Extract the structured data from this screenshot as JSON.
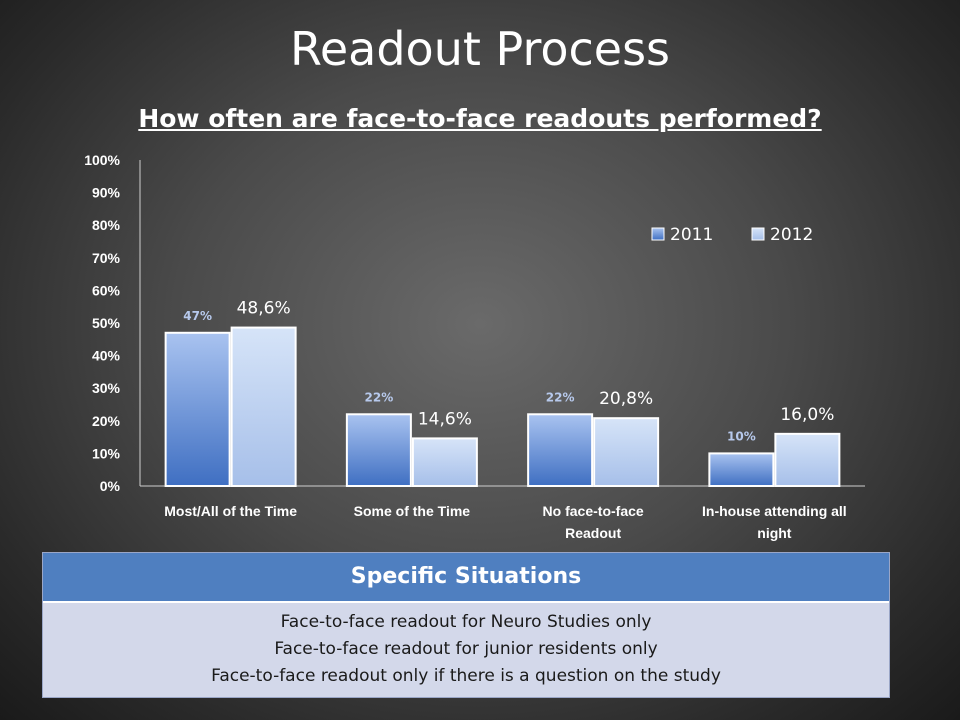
{
  "slide": {
    "title": "Readout Process"
  },
  "chart_data": {
    "type": "bar",
    "title": "How often are face-to-face readouts performed?",
    "categories": [
      [
        "Most/All of the Time"
      ],
      [
        "Some of the Time"
      ],
      [
        "No face-to-face",
        "Readout"
      ],
      [
        "In-house attending all",
        "night"
      ]
    ],
    "series": [
      {
        "name": "2011",
        "values": [
          47,
          22,
          22,
          10
        ],
        "labels": [
          "47%",
          "22%",
          "22%",
          "10%"
        ],
        "color": "#5a86d4"
      },
      {
        "name": "2012",
        "values": [
          48.6,
          14.6,
          20.8,
          16.0
        ],
        "labels": [
          "48,6%",
          "14,6%",
          "20,8%",
          "16,0%"
        ],
        "color": "#b9d0f2"
      }
    ],
    "ylim": [
      0,
      100
    ],
    "yticks": [
      "0%",
      "10%",
      "20%",
      "30%",
      "40%",
      "50%",
      "60%",
      "70%",
      "80%",
      "90%",
      "100%"
    ],
    "legend": "top-right",
    "grid": false
  },
  "situations": {
    "header": "Specific Situations",
    "rows": [
      "Face-to-face readout for Neuro Studies only",
      "Face-to-face readout for junior residents only",
      "Face-to-face readout only if there is a question on the study"
    ]
  }
}
